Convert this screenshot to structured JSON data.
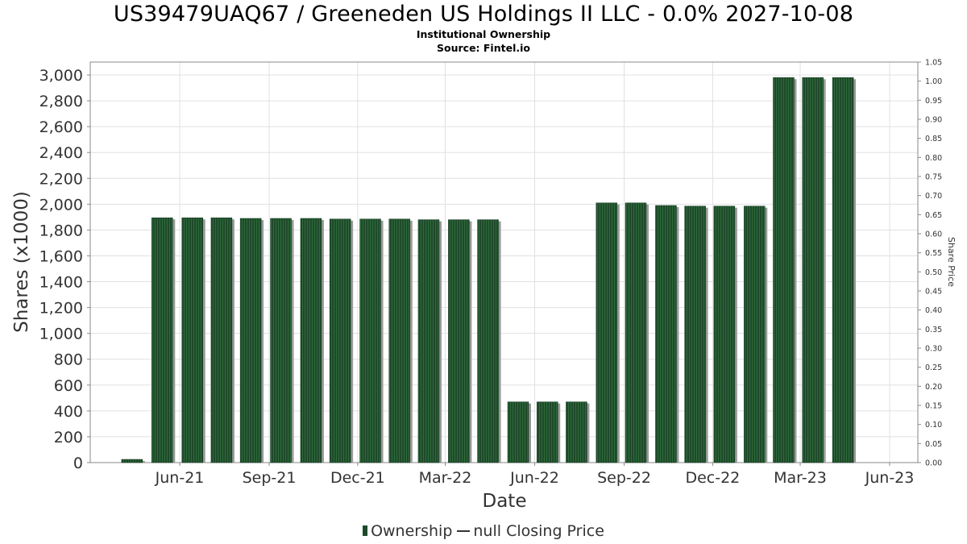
{
  "header": {
    "title": "US39479UAQ67 / Greeneden US Holdings II LLC - 0.0% 2027-10-08",
    "subtitle1": "Institutional Ownership",
    "subtitle2": "Source: Fintel.io"
  },
  "legend": {
    "ownership": "Ownership",
    "price": "null Closing Price"
  },
  "colors": {
    "bar": "#1e4a2a",
    "bar_stripe": "#2f6b3c",
    "shadow": "#9a9a9a",
    "grid": "#e0e0e0"
  },
  "chart_data": {
    "type": "bar",
    "xlabel": "Date",
    "ylabel": "Shares (x1000)",
    "y2label": "Share Price",
    "ylim": [
      0,
      3100
    ],
    "y_ticks": [
      "0",
      "200",
      "400",
      "600",
      "800",
      "1,000",
      "1,200",
      "1,400",
      "1,600",
      "1,800",
      "2,000",
      "2,200",
      "2,400",
      "2,600",
      "2,800",
      "3,000"
    ],
    "y2lim": [
      0,
      1.05
    ],
    "y2_ticks": [
      "0.00",
      "0.05",
      "0.10",
      "0.15",
      "0.20",
      "0.25",
      "0.30",
      "0.35",
      "0.40",
      "0.45",
      "0.50",
      "0.55",
      "0.60",
      "0.65",
      "0.70",
      "0.75",
      "0.80",
      "0.85",
      "0.90",
      "0.95",
      "1.00",
      "1.05"
    ],
    "xlim": [
      "2021-03-01",
      "2023-06-30"
    ],
    "x_ticks": [
      {
        "label": "Jun-21",
        "date": "2021-06-01"
      },
      {
        "label": "Sep-21",
        "date": "2021-09-01"
      },
      {
        "label": "Dec-21",
        "date": "2021-12-01"
      },
      {
        "label": "Mar-22",
        "date": "2022-03-01"
      },
      {
        "label": "Jun-22",
        "date": "2022-06-01"
      },
      {
        "label": "Sep-22",
        "date": "2022-09-01"
      },
      {
        "label": "Dec-22",
        "date": "2022-12-01"
      },
      {
        "label": "Mar-23",
        "date": "2023-03-01"
      },
      {
        "label": "Jun-23",
        "date": "2023-06-01"
      }
    ],
    "series": [
      {
        "name": "Ownership",
        "points": [
          {
            "date": "2021-04-13",
            "value": 25
          },
          {
            "date": "2021-05-14",
            "value": 1895
          },
          {
            "date": "2021-06-14",
            "value": 1895
          },
          {
            "date": "2021-07-14",
            "value": 1895
          },
          {
            "date": "2021-08-13",
            "value": 1890
          },
          {
            "date": "2021-09-13",
            "value": 1890
          },
          {
            "date": "2021-10-14",
            "value": 1890
          },
          {
            "date": "2021-11-13",
            "value": 1885
          },
          {
            "date": "2021-12-14",
            "value": 1885
          },
          {
            "date": "2022-01-13",
            "value": 1885
          },
          {
            "date": "2022-02-12",
            "value": 1880
          },
          {
            "date": "2022-03-15",
            "value": 1880
          },
          {
            "date": "2022-04-14",
            "value": 1880
          },
          {
            "date": "2022-05-15",
            "value": 470
          },
          {
            "date": "2022-06-14",
            "value": 470
          },
          {
            "date": "2022-07-14",
            "value": 470
          },
          {
            "date": "2022-08-14",
            "value": 2010
          },
          {
            "date": "2022-09-13",
            "value": 2010
          },
          {
            "date": "2022-10-14",
            "value": 1990
          },
          {
            "date": "2022-11-13",
            "value": 1985
          },
          {
            "date": "2022-12-13",
            "value": 1985
          },
          {
            "date": "2023-01-13",
            "value": 1985
          },
          {
            "date": "2023-02-12",
            "value": 2980
          },
          {
            "date": "2023-03-14",
            "value": 2980
          },
          {
            "date": "2023-04-14",
            "value": 2980
          }
        ]
      }
    ]
  }
}
